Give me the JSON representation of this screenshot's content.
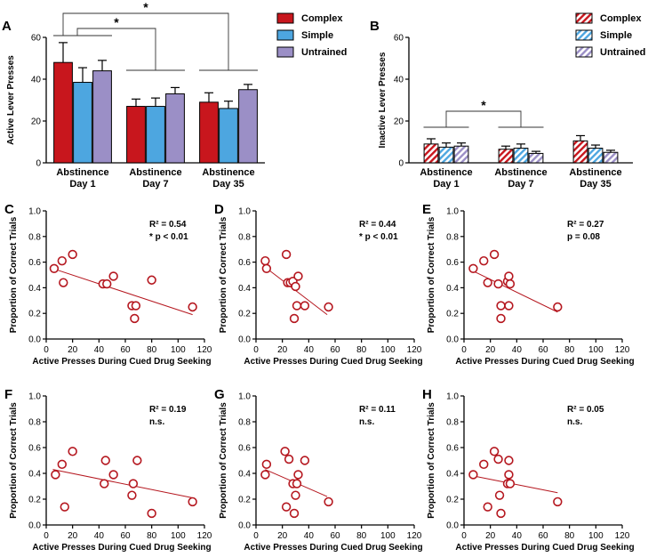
{
  "colors": {
    "complex": "#c8161d",
    "simple": "#4da6e0",
    "untrained": "#9b8fc6",
    "scatter": "#b5171f",
    "axis": "#000000"
  },
  "chart_data": [
    {
      "panel": "A",
      "type": "bar",
      "ylabel": "Active Lever  Presses",
      "ylim": [
        0,
        60
      ],
      "yticks": [
        "0",
        "20",
        "40",
        "60"
      ],
      "categories": [
        {
          "line1": "Abstinence",
          "line2": "Day 1"
        },
        {
          "line1": "Abstinence",
          "line2": "Day 7"
        },
        {
          "line1": "Abstinence",
          "line2": "Day 35"
        }
      ],
      "series": [
        {
          "name": "Complex",
          "values": [
            48,
            27,
            29
          ],
          "errors": [
            9.5,
            3.5,
            4.5
          ]
        },
        {
          "name": "Simple",
          "values": [
            38.5,
            27,
            26
          ],
          "errors": [
            7,
            4,
            3.5
          ]
        },
        {
          "name": "Untrained",
          "values": [
            44,
            33,
            35
          ],
          "errors": [
            5,
            3,
            2.5
          ]
        }
      ],
      "legend": "top-right",
      "hatched": false,
      "significance": [
        {
          "label": "*",
          "from": 0,
          "to": 1
        },
        {
          "label": "*",
          "from": 0,
          "to": 2
        }
      ]
    },
    {
      "panel": "B",
      "type": "bar",
      "ylabel": "Inactive Lever  Presses",
      "ylim": [
        0,
        60
      ],
      "yticks": [
        "0",
        "20",
        "40",
        "60"
      ],
      "categories": [
        {
          "line1": "Abstinence",
          "line2": "Day 1"
        },
        {
          "line1": "Abstinence",
          "line2": "Day 7"
        },
        {
          "line1": "Abstinence",
          "line2": "Day 35"
        }
      ],
      "series": [
        {
          "name": "Complex",
          "values": [
            9,
            6.5,
            10.5
          ],
          "errors": [
            2.5,
            1.5,
            2.5
          ]
        },
        {
          "name": "Simple",
          "values": [
            7.5,
            7,
            7
          ],
          "errors": [
            2,
            2,
            1.5
          ]
        },
        {
          "name": "Untrained",
          "values": [
            8,
            4.5,
            5
          ],
          "errors": [
            1.5,
            1,
            1
          ]
        }
      ],
      "legend": "top-right",
      "hatched": true,
      "significance": [
        {
          "label": "*",
          "from": 0,
          "to": 1
        }
      ]
    },
    {
      "panel": "C",
      "type": "scatter",
      "xlabel": "Active Presses During Cued Drug Seeking",
      "ylabel": "Proportion of Correct Trials",
      "xlim": [
        0,
        120
      ],
      "ylim": [
        0,
        1.0
      ],
      "xticks": [
        "0",
        "20",
        "40",
        "60",
        "80",
        "100",
        "120"
      ],
      "yticks": [
        "0.0",
        "0.2",
        "0.4",
        "0.6",
        "0.8",
        "1.0"
      ],
      "x": [
        6,
        12,
        13,
        20,
        43,
        46,
        51,
        65,
        67,
        68,
        80,
        111
      ],
      "y": [
        0.55,
        0.61,
        0.44,
        0.66,
        0.43,
        0.43,
        0.49,
        0.26,
        0.16,
        0.26,
        0.46,
        0.25
      ],
      "fit": {
        "x": [
          5,
          111
        ],
        "y": [
          0.55,
          0.19
        ]
      },
      "stats": {
        "r2": "R² = 0.54",
        "p": "* p < 0.01"
      }
    },
    {
      "panel": "D",
      "type": "scatter",
      "xlabel": "Active Presses During Cued Drug Seeking",
      "ylabel": "Proportion of Correct Trials",
      "xlim": [
        0,
        120
      ],
      "ylim": [
        0,
        1.0
      ],
      "xticks": [
        "0",
        "20",
        "40",
        "60",
        "80",
        "100",
        "120"
      ],
      "yticks": [
        "0.0",
        "0.2",
        "0.4",
        "0.6",
        "0.8",
        "1.0"
      ],
      "x": [
        7,
        8,
        23,
        24,
        26,
        28,
        29,
        30,
        31,
        32,
        37,
        55
      ],
      "y": [
        0.61,
        0.55,
        0.66,
        0.44,
        0.44,
        0.45,
        0.16,
        0.41,
        0.26,
        0.49,
        0.26,
        0.25
      ],
      "fit": {
        "x": [
          7,
          54
        ],
        "y": [
          0.56,
          0.19
        ]
      },
      "stats": {
        "r2": "R² = 0.44",
        "p": "* p < 0.01"
      }
    },
    {
      "panel": "E",
      "type": "scatter",
      "xlabel": "Active Presses During Cued Drug Seeking",
      "ylabel": "Proportion of Correct Trials",
      "xlim": [
        0,
        120
      ],
      "ylim": [
        0,
        1.0
      ],
      "xticks": [
        "0",
        "20",
        "40",
        "60",
        "80",
        "100",
        "120"
      ],
      "yticks": [
        "0.0",
        "0.2",
        "0.4",
        "0.6",
        "0.8",
        "1.0"
      ],
      "x": [
        7,
        15,
        18,
        23,
        26,
        28,
        28,
        33,
        34,
        34,
        35,
        71
      ],
      "y": [
        0.55,
        0.61,
        0.44,
        0.66,
        0.43,
        0.26,
        0.16,
        0.45,
        0.26,
        0.49,
        0.43,
        0.25
      ],
      "fit": {
        "x": [
          7,
          71
        ],
        "y": [
          0.53,
          0.21
        ]
      },
      "stats": {
        "r2": "R² = 0.27",
        "p": "p = 0.08"
      }
    },
    {
      "panel": "F",
      "type": "scatter",
      "xlabel": "Active Presses During Cued Drug Seeking",
      "ylabel": "Proportion of Correct Trials",
      "xlim": [
        0,
        120
      ],
      "ylim": [
        0,
        1.0
      ],
      "xticks": [
        "0",
        "20",
        "40",
        "60",
        "80",
        "100",
        "120"
      ],
      "yticks": [
        "0.0",
        "0.2",
        "0.4",
        "0.6",
        "0.8",
        "1.0"
      ],
      "x": [
        7,
        12,
        14,
        20,
        44,
        45,
        51,
        65,
        66,
        69,
        80,
        111
      ],
      "y": [
        0.39,
        0.47,
        0.14,
        0.57,
        0.32,
        0.5,
        0.39,
        0.23,
        0.32,
        0.5,
        0.09,
        0.18
      ],
      "fit": {
        "x": [
          5,
          111
        ],
        "y": [
          0.43,
          0.21
        ]
      },
      "stats": {
        "r2": "R² = 0.19",
        "p": "n.s."
      }
    },
    {
      "panel": "G",
      "type": "scatter",
      "xlabel": "Active Presses During Cued Drug Seeking",
      "ylabel": "Proportion of Correct Trials",
      "xlim": [
        0,
        120
      ],
      "ylim": [
        0,
        1.0
      ],
      "xticks": [
        "0",
        "20",
        "40",
        "60",
        "80",
        "100",
        "120"
      ],
      "yticks": [
        "0.0",
        "0.2",
        "0.4",
        "0.6",
        "0.8",
        "1.0"
      ],
      "x": [
        7,
        8,
        22,
        23,
        25,
        28,
        29,
        30,
        31,
        32,
        37,
        55
      ],
      "y": [
        0.39,
        0.47,
        0.57,
        0.14,
        0.51,
        0.32,
        0.09,
        0.23,
        0.32,
        0.39,
        0.5,
        0.18
      ],
      "fit": {
        "x": [
          7,
          54
        ],
        "y": [
          0.43,
          0.22
        ]
      },
      "stats": {
        "r2": "R² = 0.11",
        "p": "n.s."
      }
    },
    {
      "panel": "H",
      "type": "scatter",
      "xlabel": "Active Presses During Cued Drug Seeking",
      "ylabel": "Proportion of Correct Trials",
      "xlim": [
        0,
        120
      ],
      "ylim": [
        0,
        1.0
      ],
      "xticks": [
        "0",
        "20",
        "40",
        "60",
        "80",
        "100",
        "120"
      ],
      "yticks": [
        "0.0",
        "0.2",
        "0.4",
        "0.6",
        "0.8",
        "1.0"
      ],
      "x": [
        7,
        15,
        18,
        23,
        26,
        27,
        28,
        33,
        34,
        34,
        35,
        71
      ],
      "y": [
        0.39,
        0.47,
        0.14,
        0.57,
        0.51,
        0.23,
        0.09,
        0.32,
        0.5,
        0.39,
        0.32,
        0.18
      ],
      "fit": {
        "x": [
          7,
          71
        ],
        "y": [
          0.38,
          0.25
        ]
      },
      "stats": {
        "r2": "R² = 0.05",
        "p": "n.s."
      }
    }
  ]
}
